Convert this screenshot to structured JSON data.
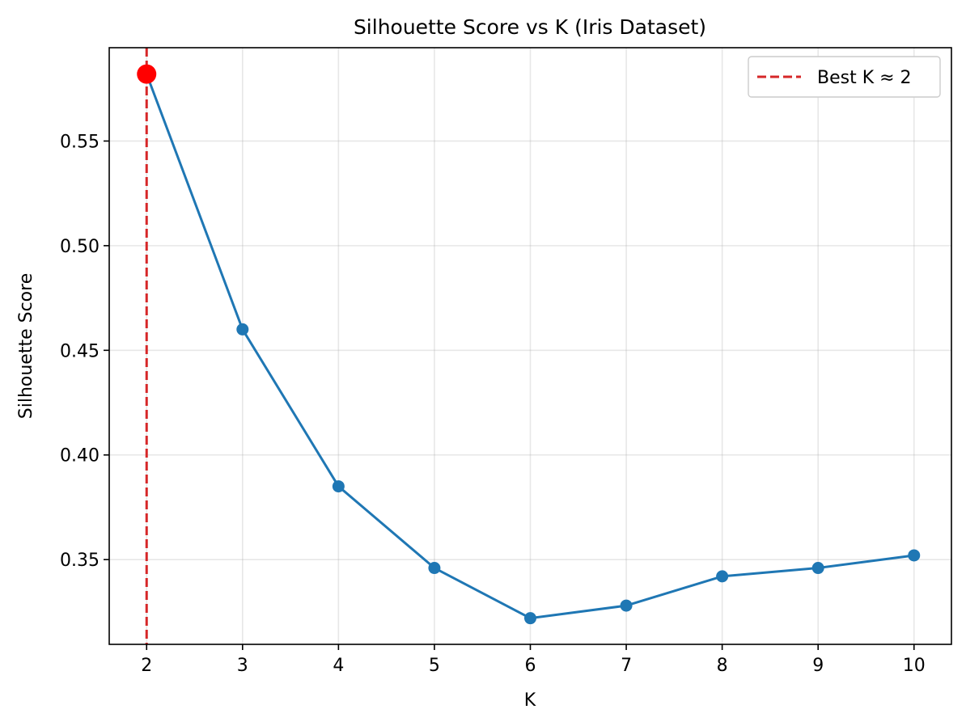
{
  "chart_data": {
    "type": "line",
    "title": "Silhouette Score vs K (Iris Dataset)",
    "xlabel": "K",
    "ylabel": "Silhouette Score",
    "x": [
      2,
      3,
      4,
      5,
      6,
      7,
      8,
      9,
      10
    ],
    "xlim": [
      1.61,
      10.39
    ],
    "ylim": [
      0.3095,
      0.5946
    ],
    "xticks": [
      2,
      3,
      4,
      5,
      6,
      7,
      8,
      9,
      10
    ],
    "yticks": [
      0.35,
      0.4,
      0.45,
      0.5,
      0.55
    ],
    "ytick_labels": [
      "0.35",
      "0.40",
      "0.45",
      "0.50",
      "0.55"
    ],
    "grid": true,
    "series": [
      {
        "values": [
          0.582,
          0.46,
          0.385,
          0.346,
          0.322,
          0.328,
          0.342,
          0.346,
          0.352
        ],
        "color": "#1f77b4",
        "marker": "circle"
      }
    ],
    "best_k": {
      "x": 2,
      "y": 0.582,
      "line_color": "#d62728",
      "line_style": "dashed",
      "marker_color": "#ff0000"
    },
    "legend": {
      "position": "top-right",
      "entries": [
        {
          "label": "Best K ≈ 2",
          "color": "#d62728",
          "style": "dashed"
        }
      ]
    }
  }
}
